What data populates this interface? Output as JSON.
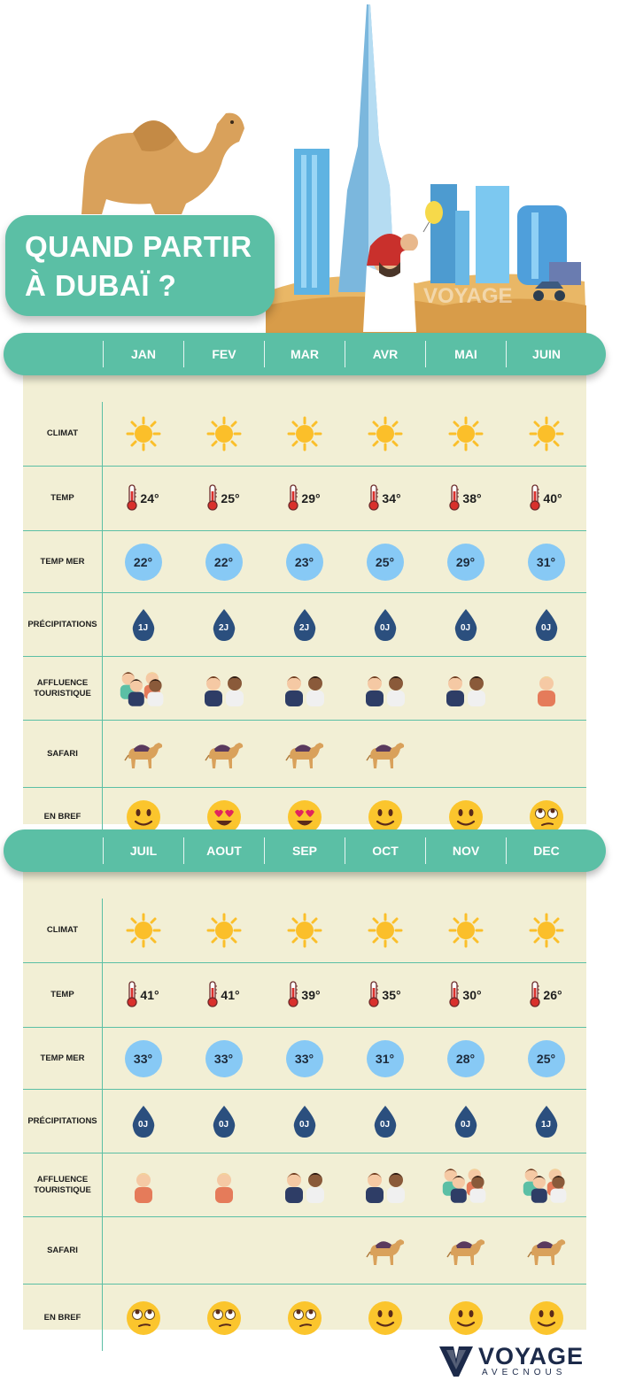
{
  "title": {
    "line1": "QUAND PARTIR",
    "line2": "À DUBAÏ ?"
  },
  "watermark": "VOYAGE",
  "row_labels": {
    "climat": "CLIMAT",
    "temp": "TEMP",
    "temp_mer": "TEMP MER",
    "precip": "PRÉCIPITATIONS",
    "affluence_1": "AFFLUENCE",
    "affluence_2": "TOURISTIQUE",
    "safari": "SAFARI",
    "en_bref": "EN BREF"
  },
  "colors": {
    "teal": "#5bbfa5",
    "panel": "#f2efd5",
    "sea": "#87c9f5",
    "drop": "#2b4f7e",
    "sun": "#fbbf2a"
  },
  "sections": [
    {
      "months": [
        "JAN",
        "FEV",
        "MAR",
        "AVR",
        "MAI",
        "JUIN"
      ],
      "temp": [
        "24°",
        "25°",
        "29°",
        "34°",
        "38°",
        "40°"
      ],
      "temp_mer": [
        "22°",
        "22°",
        "23°",
        "25°",
        "29°",
        "31°"
      ],
      "precip": [
        "1J",
        "2J",
        "2J",
        "0J",
        "0J",
        "0J"
      ],
      "affluence": [
        3,
        2,
        2,
        2,
        2,
        1
      ],
      "safari": [
        true,
        true,
        true,
        true,
        false,
        false
      ],
      "mood": [
        "smile",
        "heart-eyes",
        "heart-eyes",
        "smile",
        "smile",
        "eye-roll"
      ]
    },
    {
      "months": [
        "JUIL",
        "AOUT",
        "SEP",
        "OCT",
        "NOV",
        "DEC"
      ],
      "temp": [
        "41°",
        "41°",
        "39°",
        "35°",
        "30°",
        "26°"
      ],
      "temp_mer": [
        "33°",
        "33°",
        "33°",
        "31°",
        "28°",
        "25°"
      ],
      "precip": [
        "0J",
        "0J",
        "0J",
        "0J",
        "0J",
        "1J"
      ],
      "affluence": [
        1,
        1,
        2,
        2,
        3,
        3
      ],
      "safari": [
        false,
        false,
        false,
        true,
        true,
        true
      ],
      "mood": [
        "eye-roll",
        "eye-roll",
        "eye-roll",
        "smile",
        "smile",
        "smile"
      ]
    }
  ],
  "logo": {
    "word": "VOYAGE",
    "sub": "AVECNOUS"
  }
}
